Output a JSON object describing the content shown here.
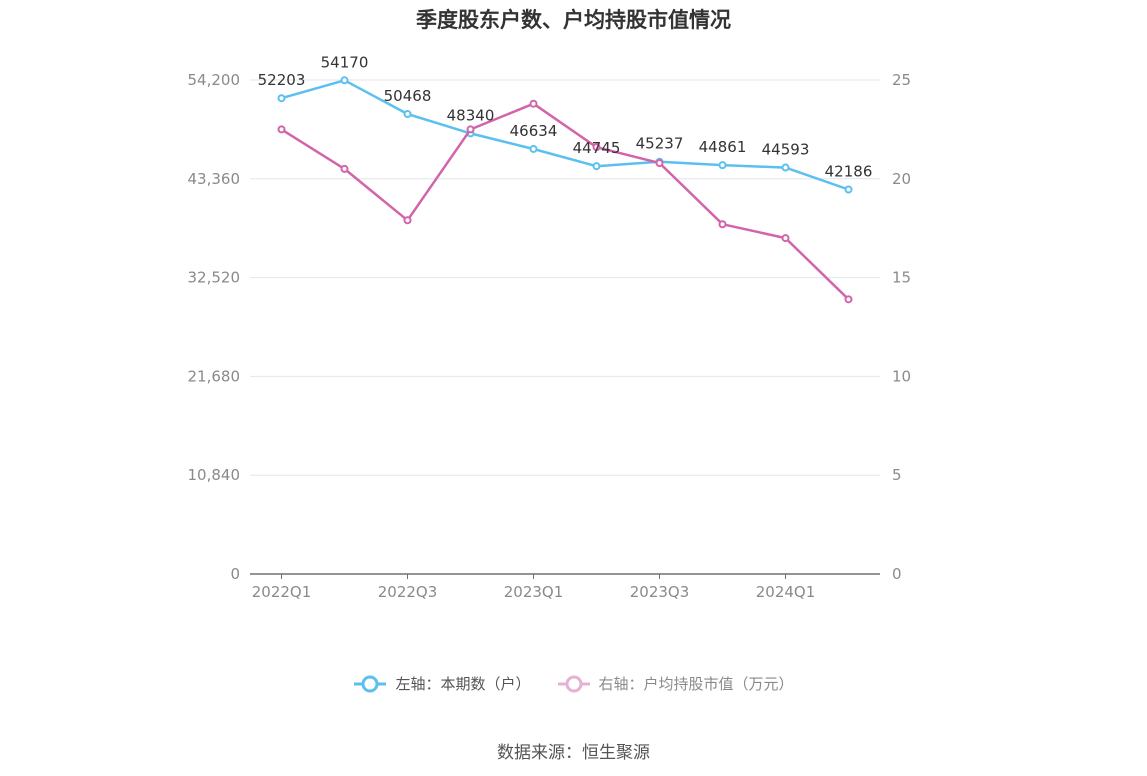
{
  "title": "季度股东户数、户均持股市值情况",
  "source": "数据来源：恒生聚源",
  "legend": {
    "left": "左轴：本期数（户）",
    "right": "右轴：户均持股市值（万元）"
  },
  "colors": {
    "holders": "#5bc0f0",
    "avg_value": "#d264aa",
    "grid": "#e3e6ee",
    "axis": "#6e7079"
  },
  "chart_data": {
    "type": "line",
    "title": "季度股东户数、户均持股市值情况",
    "categories": [
      "2022Q1",
      "2022Q2",
      "2022Q3",
      "2022Q4",
      "2023Q1",
      "2023Q2",
      "2023Q3",
      "2023Q4",
      "2024Q1",
      "2024Q2"
    ],
    "x_tick_labels": [
      "2022Q1",
      "2022Q3",
      "2023Q1",
      "2023Q3",
      "2024Q1"
    ],
    "y_left": {
      "ylim": [
        0,
        54200
      ],
      "ticks": [
        0,
        10840,
        21680,
        32520,
        43360,
        54200
      ],
      "tick_labels": [
        "0",
        "10,840",
        "21,680",
        "32,520",
        "43,360",
        "54,200"
      ]
    },
    "y_right": {
      "ylim": [
        0,
        25
      ],
      "ticks": [
        0,
        5,
        10,
        15,
        20,
        25
      ],
      "tick_labels": [
        "0",
        "5",
        "10",
        "15",
        "20",
        "25"
      ]
    },
    "series": [
      {
        "name": "左轴：本期数（户）",
        "axis": "left",
        "values": [
          52203,
          54170,
          50468,
          48340,
          46634,
          44745,
          45237,
          44861,
          44593,
          42186
        ],
        "labels": [
          "52203",
          "54170",
          "50468",
          "48340",
          "46634",
          "44745",
          "45237",
          "44861",
          "44593",
          "42186"
        ]
      },
      {
        "name": "右轴：户均持股市值（万元）",
        "axis": "right",
        "values": [
          22.5,
          20.5,
          17.9,
          22.5,
          23.8,
          21.6,
          20.8,
          17.7,
          17.0,
          13.9
        ]
      }
    ],
    "grid": true,
    "legend_position": "bottom"
  }
}
